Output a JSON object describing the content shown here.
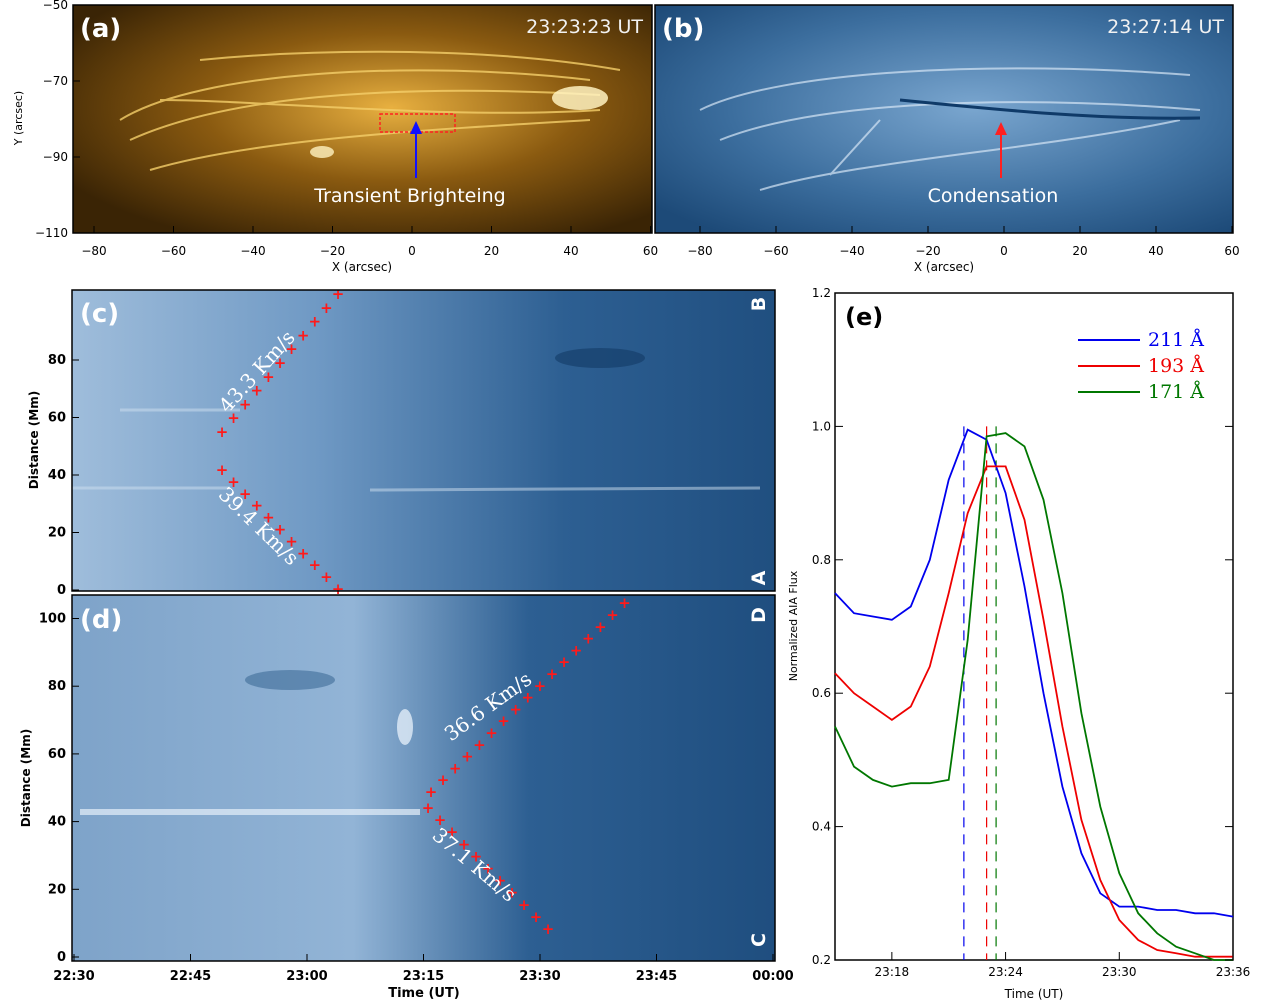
{
  "panels": {
    "a": {
      "tag": "(a)",
      "time": "23:23:23 UT",
      "annotation": "Transient Brighteing",
      "ylabel": "Y (arcsec)",
      "xlabel": "X (arcsec)",
      "yticks": [
        "−50",
        "−70",
        "−90",
        "−110"
      ],
      "xticks": [
        "−80",
        "−60",
        "−40",
        "−20",
        "0",
        "20",
        "40",
        "60"
      ]
    },
    "b": {
      "tag": "(b)",
      "time": "23:27:14 UT",
      "annotation": "Condensation",
      "xlabel": "X (arcsec)",
      "xticks": [
        "−80",
        "−60",
        "−40",
        "−20",
        "0",
        "20",
        "40",
        "60"
      ]
    },
    "c": {
      "tag": "(c)",
      "corner_top": "B",
      "corner_bottom": "A",
      "ylabel": "Distance (Mm)",
      "yticks": [
        "0",
        "20",
        "40",
        "60",
        "80"
      ],
      "speed_up": "43.3 Km/s",
      "speed_down": "39.4 Km/s"
    },
    "d": {
      "tag": "(d)",
      "corner_top": "D",
      "corner_bottom": "C",
      "ylabel": "Distance (Mm)",
      "yticks": [
        "0",
        "20",
        "40",
        "60",
        "80",
        "100"
      ],
      "xlabel": "Time (UT)",
      "xticks": [
        "22:30",
        "22:45",
        "23:00",
        "23:15",
        "23:30",
        "23:45",
        "00:00"
      ],
      "speed_up": "36.6 Km/s",
      "speed_down": "37.1 Km/s"
    }
  },
  "chart_data": {
    "type": "line",
    "title": "(e)",
    "xlabel": "Time (UT)",
    "ylabel": "Normalized AIA Flux",
    "xticks": [
      "23:18",
      "23:24",
      "23:30",
      "23:36"
    ],
    "yticks": [
      "0.2",
      "0.4",
      "0.6",
      "0.8",
      "1.0",
      "1.2"
    ],
    "ylim": [
      0.2,
      1.2
    ],
    "legend_position": "top-right",
    "x_minutes_after_23_00": [
      15,
      16,
      17,
      18,
      19,
      20,
      21,
      22,
      23,
      24,
      25,
      26,
      27,
      28,
      29,
      30,
      31,
      32,
      33,
      34,
      35,
      36
    ],
    "series": [
      {
        "name": "211 Å",
        "color": "#0000ee",
        "values": [
          0.75,
          0.72,
          0.715,
          0.71,
          0.73,
          0.8,
          0.92,
          0.995,
          0.98,
          0.9,
          0.76,
          0.6,
          0.46,
          0.36,
          0.3,
          0.28,
          0.28,
          0.275,
          0.275,
          0.27,
          0.27,
          0.265
        ]
      },
      {
        "name": "193 Å",
        "color": "#ee0000",
        "values": [
          0.63,
          0.6,
          0.58,
          0.56,
          0.58,
          0.64,
          0.75,
          0.87,
          0.94,
          0.94,
          0.86,
          0.71,
          0.55,
          0.41,
          0.32,
          0.26,
          0.23,
          0.215,
          0.21,
          0.205,
          0.205,
          0.205
        ]
      },
      {
        "name": "171 Å",
        "color": "#007700",
        "values": [
          0.55,
          0.49,
          0.47,
          0.46,
          0.465,
          0.465,
          0.47,
          0.68,
          0.985,
          0.99,
          0.97,
          0.89,
          0.75,
          0.57,
          0.43,
          0.33,
          0.27,
          0.24,
          0.22,
          0.21,
          0.2,
          0.2
        ]
      }
    ],
    "peak_markers_minutes": [
      21.8,
      23.0,
      23.5
    ]
  }
}
